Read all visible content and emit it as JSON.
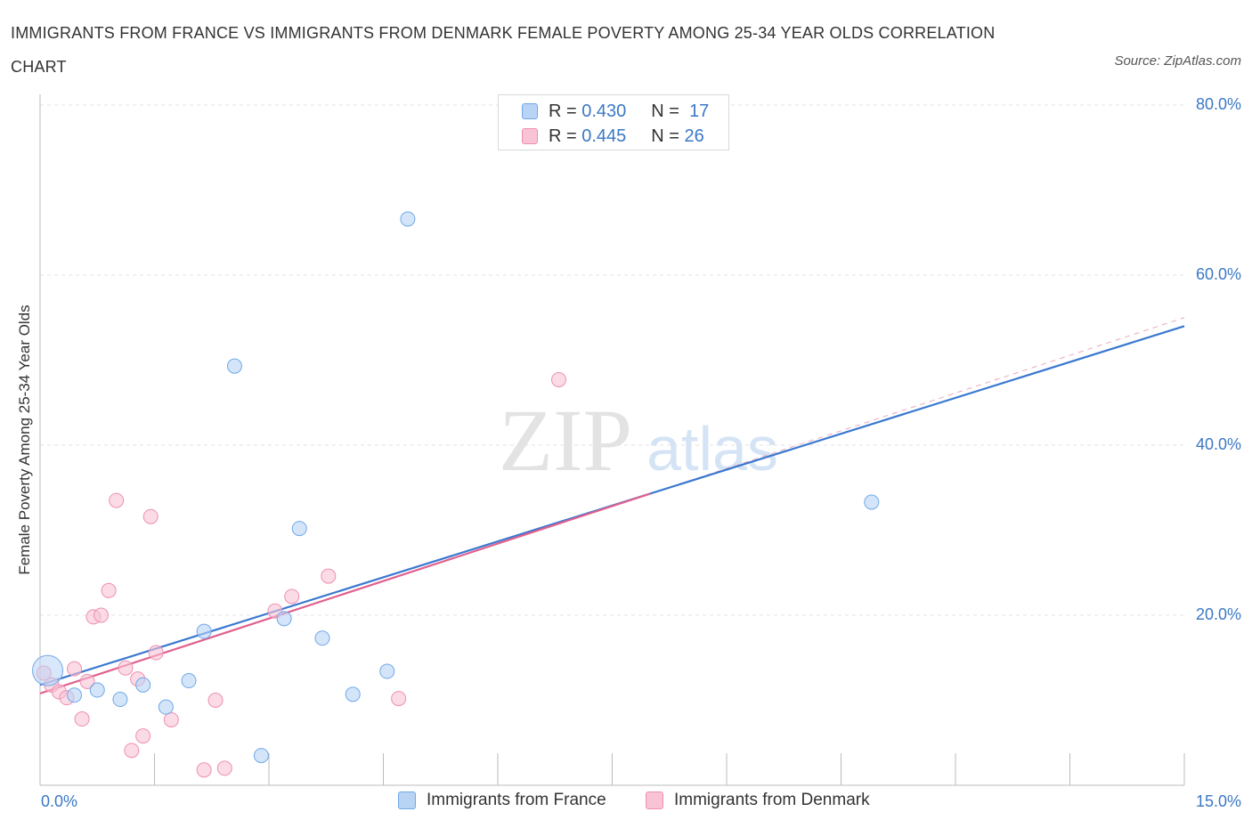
{
  "chart_data": {
    "type": "scatter",
    "title": "IMMIGRANTS FROM FRANCE VS IMMIGRANTS FROM DENMARK FEMALE POVERTY AMONG 25-34 YEAR OLDS CORRELATION CHART",
    "source": "Source: ZipAtlas.com",
    "ylabel": "Female Poverty Among 25-34 Year Olds",
    "xlabel": "",
    "xlim": [
      0,
      15
    ],
    "ylim": [
      0,
      80
    ],
    "x_tick_labels": [
      "0.0%",
      "15.0%"
    ],
    "y_ticks": [
      {
        "value": 80,
        "label": "80.0%"
      },
      {
        "value": 60,
        "label": "60.0%"
      },
      {
        "value": 40,
        "label": "40.0%"
      },
      {
        "value": 20,
        "label": "20.0%"
      }
    ],
    "legend": {
      "rows": [
        {
          "r_label": "R =",
          "r_value": "0.430",
          "n_label": "N =",
          "n_value": "17"
        },
        {
          "r_label": "R =",
          "r_value": "0.445",
          "n_label": "N =",
          "n_value": "26"
        }
      ]
    },
    "watermark": {
      "zip": "ZIP",
      "atlas": "atlas"
    },
    "series": [
      {
        "name": "Immigrants from France",
        "color": "#6fa8e8",
        "fill": "#b9d3f5",
        "line_color": "#3a78d0",
        "trend": {
          "x0": 0,
          "y0": 11.8,
          "x1": 15,
          "y1": 54.0
        },
        "points": [
          {
            "x": 0.1,
            "y": 13.5,
            "big": true
          },
          {
            "x": 0.45,
            "y": 10.6
          },
          {
            "x": 0.75,
            "y": 11.2
          },
          {
            "x": 1.05,
            "y": 10.1
          },
          {
            "x": 1.35,
            "y": 11.8
          },
          {
            "x": 1.65,
            "y": 9.2
          },
          {
            "x": 1.95,
            "y": 12.3
          },
          {
            "x": 2.15,
            "y": 18.1
          },
          {
            "x": 2.55,
            "y": 49.3
          },
          {
            "x": 2.9,
            "y": 3.5
          },
          {
            "x": 3.2,
            "y": 19.6
          },
          {
            "x": 3.4,
            "y": 30.2
          },
          {
            "x": 3.7,
            "y": 17.3
          },
          {
            "x": 4.1,
            "y": 10.7
          },
          {
            "x": 4.55,
            "y": 13.4
          },
          {
            "x": 4.82,
            "y": 66.6
          },
          {
            "x": 10.9,
            "y": 33.3
          }
        ]
      },
      {
        "name": "Immigrants from Denmark",
        "color": "#ef8fb0",
        "fill": "#f7c3d5",
        "line_color": "#e0608e",
        "trend": {
          "x0": 0,
          "y0": 10.8,
          "x1": 8.0,
          "y1": 34.3
        },
        "trend_ext": {
          "x0": 8.0,
          "y0": 34.3,
          "x1": 15,
          "y1": 55.0
        },
        "points": [
          {
            "x": 0.05,
            "y": 13.2
          },
          {
            "x": 0.15,
            "y": 11.8
          },
          {
            "x": 0.25,
            "y": 11.0
          },
          {
            "x": 0.35,
            "y": 10.3
          },
          {
            "x": 0.45,
            "y": 13.7
          },
          {
            "x": 0.55,
            "y": 7.8
          },
          {
            "x": 0.62,
            "y": 12.2
          },
          {
            "x": 0.7,
            "y": 19.8
          },
          {
            "x": 0.8,
            "y": 20.0
          },
          {
            "x": 0.9,
            "y": 22.9
          },
          {
            "x": 1.0,
            "y": 33.5
          },
          {
            "x": 1.12,
            "y": 13.8
          },
          {
            "x": 1.2,
            "y": 4.1
          },
          {
            "x": 1.28,
            "y": 12.5
          },
          {
            "x": 1.35,
            "y": 5.8
          },
          {
            "x": 1.45,
            "y": 31.6
          },
          {
            "x": 1.52,
            "y": 15.6
          },
          {
            "x": 1.72,
            "y": 7.7
          },
          {
            "x": 2.15,
            "y": 1.8
          },
          {
            "x": 2.3,
            "y": 10.0
          },
          {
            "x": 2.42,
            "y": 2.0
          },
          {
            "x": 3.08,
            "y": 20.5
          },
          {
            "x": 3.3,
            "y": 22.2
          },
          {
            "x": 3.78,
            "y": 24.6
          },
          {
            "x": 4.7,
            "y": 10.2
          },
          {
            "x": 6.8,
            "y": 47.7
          }
        ]
      }
    ]
  }
}
